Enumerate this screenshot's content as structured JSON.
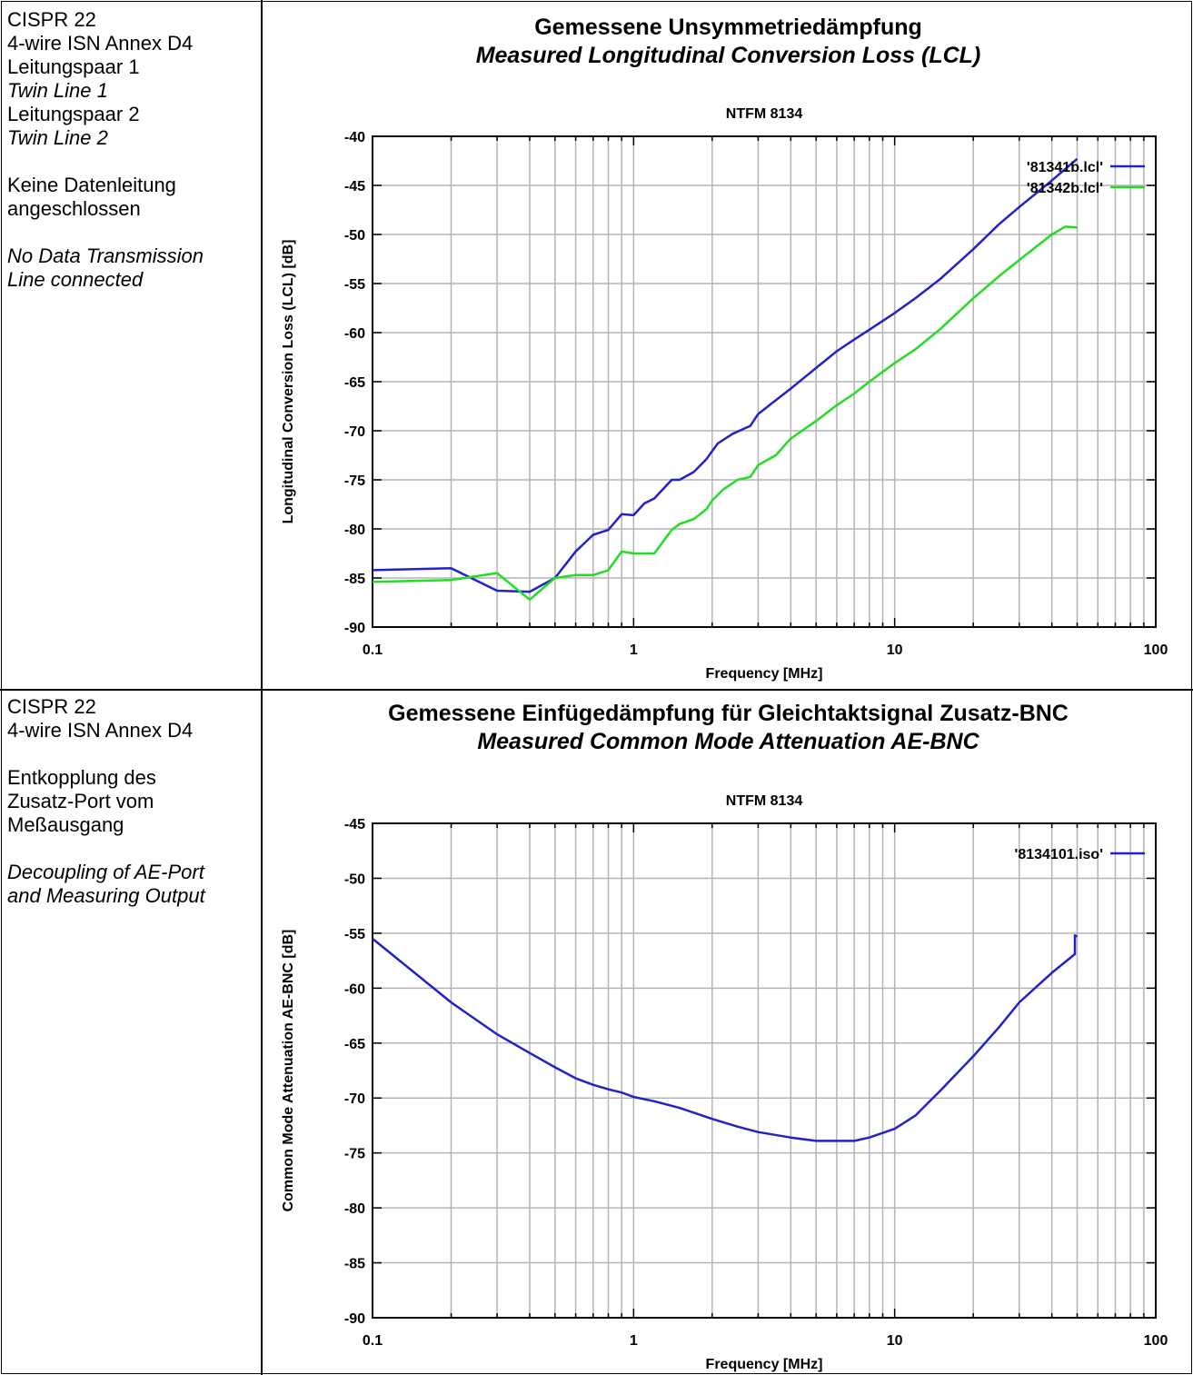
{
  "panels": [
    {
      "side_lines": [
        {
          "text": "CISPR 22",
          "italic": false
        },
        {
          "text": "4-wire ISN Annex  D4",
          "italic": false
        },
        {
          "text": "Leitungspaar 1",
          "italic": false
        },
        {
          "text": "Twin Line 1",
          "italic": true
        },
        {
          "text": "Leitungspaar 2",
          "italic": false
        },
        {
          "text": "Twin Line 2",
          "italic": true
        },
        {
          "text": "",
          "italic": false
        },
        {
          "text": "Keine Datenleitung",
          "italic": false
        },
        {
          "text": "angeschlossen",
          "italic": false
        },
        {
          "text": "",
          "italic": false
        },
        {
          "text": "No Data Transmission",
          "italic": true
        },
        {
          "text": "Line connected",
          "italic": true
        }
      ],
      "title_de": "Gemessene Unsymmetriedämpfung",
      "title_en": "Measured Longitudinal Conversion  Loss (LCL)"
    },
    {
      "side_lines": [
        {
          "text": "CISPR 22",
          "italic": false
        },
        {
          "text": "4-wire ISN Annex  D4",
          "italic": false
        },
        {
          "text": "",
          "italic": false
        },
        {
          "text": "Entkopplung des",
          "italic": false
        },
        {
          "text": "Zusatz-Port vom",
          "italic": false
        },
        {
          "text": "Meßausgang",
          "italic": false
        },
        {
          "text": "",
          "italic": false
        },
        {
          "text": "Decoupling of AE-Port",
          "italic": true
        },
        {
          "text": "and Measuring Output",
          "italic": true
        }
      ],
      "title_de": "Gemessene Einfügedämpfung für Gleichtaktsignal Zusatz-BNC",
      "title_en": "Measured Common Mode Attenuation AE-BNC"
    }
  ],
  "chart_data": [
    {
      "type": "line",
      "title": "NTFM 8134",
      "xlabel": "Frequency [MHz]",
      "ylabel": "Longitudinal Conversion Loss (LCL) [dB]",
      "xscale": "log",
      "xlim": [
        0.1,
        100
      ],
      "ylim": [
        -90,
        -40
      ],
      "xticks": [
        0.1,
        1,
        10,
        100
      ],
      "xtick_labels": [
        "0.1",
        "1",
        "10",
        "100"
      ],
      "yticks": [
        -90,
        -85,
        -80,
        -75,
        -70,
        -65,
        -60,
        -55,
        -50,
        -45,
        -40
      ],
      "ytick_labels": [
        "-90",
        "-85",
        "-80",
        "-75",
        "-70",
        "-65",
        "-60",
        "-55",
        "-50",
        "-45",
        "-40"
      ],
      "grid": true,
      "legend": "top-right",
      "series": [
        {
          "name": "'81341b.lcl'",
          "color": "#2222cc",
          "x": [
            0.1,
            0.2,
            0.3,
            0.4,
            0.5,
            0.6,
            0.7,
            0.8,
            0.9,
            1.0,
            1.1,
            1.2,
            1.4,
            1.5,
            1.7,
            1.9,
            2.1,
            2.4,
            2.8,
            3.0,
            3.5,
            4.0,
            5.0,
            6.0,
            7.0,
            8.0,
            10,
            12,
            15,
            20,
            25,
            30,
            40,
            50
          ],
          "y": [
            -84.2,
            -84.0,
            -86.3,
            -86.4,
            -85.0,
            -82.3,
            -80.6,
            -80.1,
            -78.5,
            -78.6,
            -77.4,
            -76.9,
            -75.0,
            -75.0,
            -74.2,
            -72.9,
            -71.3,
            -70.3,
            -69.5,
            -68.3,
            -66.9,
            -65.7,
            -63.6,
            -61.9,
            -60.7,
            -59.7,
            -58.0,
            -56.5,
            -54.5,
            -51.5,
            -49.0,
            -47.2,
            -44.5,
            -42.3
          ]
        },
        {
          "name": "'81342b.lcl'",
          "color": "#22dd22",
          "x": [
            0.1,
            0.2,
            0.3,
            0.4,
            0.5,
            0.6,
            0.7,
            0.8,
            0.9,
            1.0,
            1.2,
            1.4,
            1.5,
            1.7,
            1.9,
            2.0,
            2.2,
            2.5,
            2.8,
            3.0,
            3.5,
            4.0,
            5.0,
            6.0,
            7.0,
            8.0,
            10,
            12,
            15,
            20,
            25,
            30,
            40,
            45,
            50
          ],
          "y": [
            -85.4,
            -85.2,
            -84.5,
            -87.2,
            -85.0,
            -84.7,
            -84.7,
            -84.2,
            -82.3,
            -82.5,
            -82.5,
            -80.1,
            -79.5,
            -79.0,
            -78.0,
            -77.1,
            -76.0,
            -75.0,
            -74.7,
            -73.5,
            -72.5,
            -70.8,
            -69.0,
            -67.4,
            -66.2,
            -65.0,
            -63.1,
            -61.7,
            -59.6,
            -56.5,
            -54.3,
            -52.6,
            -50.0,
            -49.2,
            -49.3
          ]
        }
      ]
    },
    {
      "type": "line",
      "title": "NTFM 8134",
      "xlabel": "Frequency [MHz]",
      "ylabel": "Common Mode Attenuation AE-BNC [dB]",
      "xscale": "log",
      "xlim": [
        0.1,
        100
      ],
      "ylim": [
        -90,
        -45
      ],
      "xticks": [
        0.1,
        1,
        10,
        100
      ],
      "xtick_labels": [
        "0.1",
        "1",
        "10",
        "100"
      ],
      "yticks": [
        -90,
        -85,
        -80,
        -75,
        -70,
        -65,
        -60,
        -55,
        -50,
        -45
      ],
      "ytick_labels": [
        "-90",
        "-85",
        "-80",
        "-75",
        "-70",
        "-65",
        "-60",
        "-55",
        "-50",
        "-45"
      ],
      "grid": true,
      "legend": "top-right",
      "series": [
        {
          "name": "'8134101.iso'",
          "color": "#2222cc",
          "x": [
            0.1,
            0.2,
            0.3,
            0.4,
            0.5,
            0.6,
            0.7,
            0.8,
            0.9,
            1.0,
            1.2,
            1.5,
            2.0,
            2.5,
            3.0,
            4.0,
            5.0,
            6.0,
            7.0,
            8.0,
            10,
            12,
            15,
            20,
            25,
            30,
            40,
            49,
            49,
            50
          ],
          "y": [
            -55.5,
            -61.3,
            -64.2,
            -65.9,
            -67.2,
            -68.2,
            -68.8,
            -69.2,
            -69.5,
            -69.9,
            -70.3,
            -70.9,
            -71.9,
            -72.6,
            -73.1,
            -73.6,
            -73.9,
            -73.9,
            -73.9,
            -73.6,
            -72.8,
            -71.6,
            -69.3,
            -66.2,
            -63.6,
            -61.3,
            -58.6,
            -56.9,
            -55.2,
            -55.3
          ]
        }
      ]
    }
  ]
}
